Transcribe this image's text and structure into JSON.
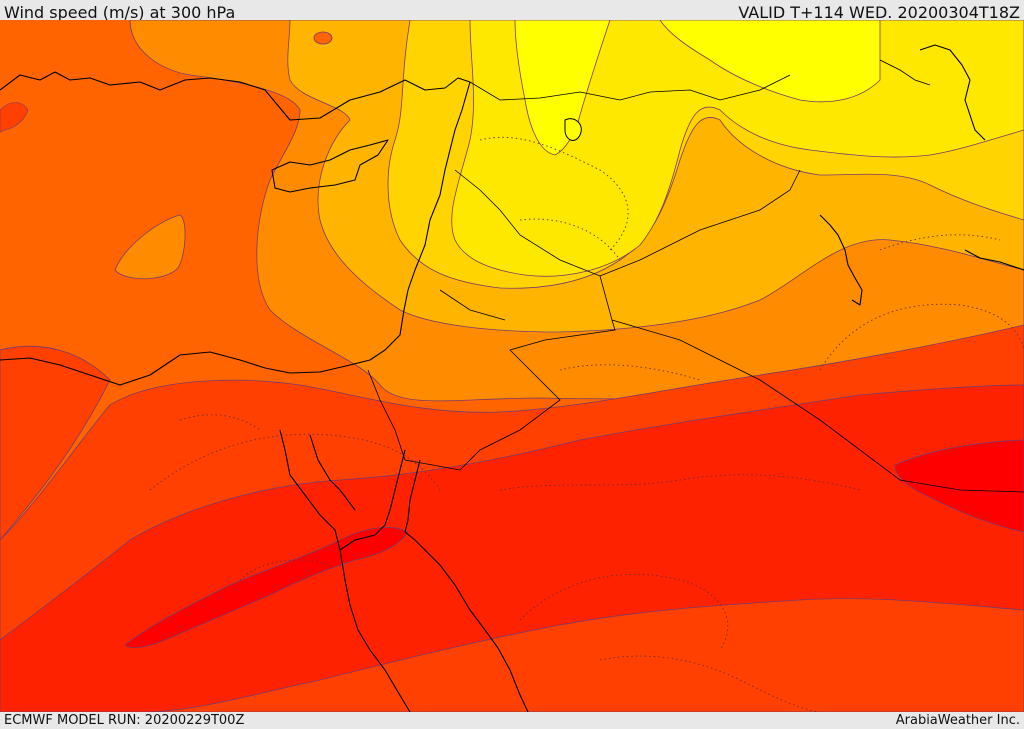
{
  "header": {
    "title": "Wind speed (m/s) at 300 hPa",
    "valid": "VALID T+114 WED. 20200304T18Z"
  },
  "footer": {
    "model_run": "ECMWF MODEL RUN: 20200229T00Z",
    "credit": "ArabiaWeather Inc."
  },
  "map": {
    "field": "wind speed",
    "level": "300 hPa",
    "palette": {
      "band_1": "#ff0000",
      "band_2": "#ff2200",
      "band_3": "#ff4000",
      "band_4": "#ff6400",
      "band_5": "#ff8c00",
      "band_6": "#ffb400",
      "band_7": "#ffd400",
      "band_8": "#ffe800",
      "band_9": "#ffff00",
      "contour": "#7a3a6a",
      "coastline": "#000000"
    }
  }
}
